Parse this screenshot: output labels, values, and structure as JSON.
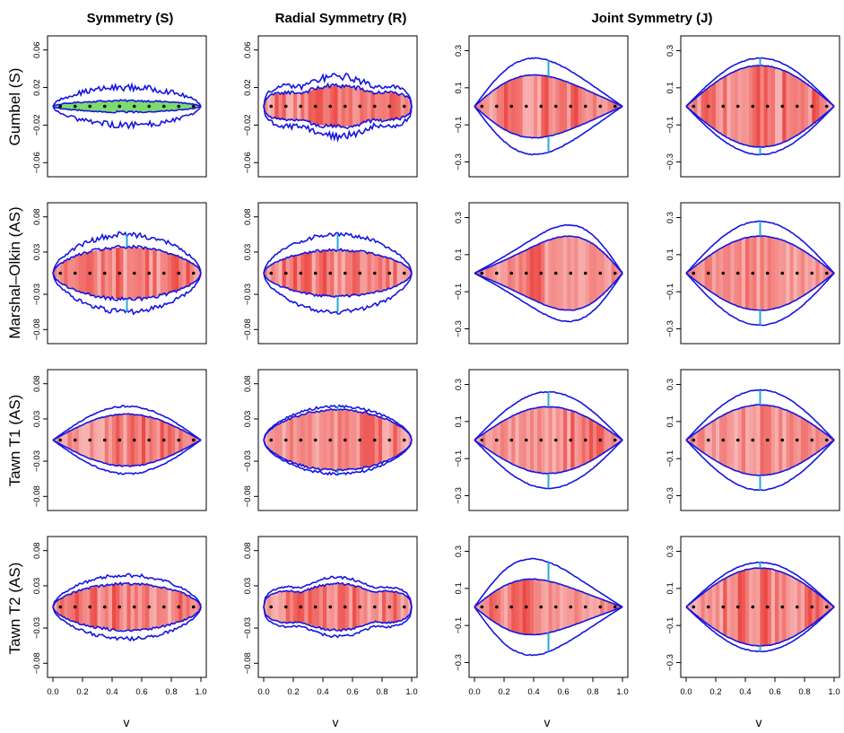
{
  "figure": {
    "column_titles": [
      "Symmetry (S)",
      "Radial Symmetry (R)",
      "Joint Symmetry (J)"
    ],
    "row_labels": [
      "Gumbel (S)",
      "Marshal–Olkin (AS)",
      "Tawn T1 (AS)",
      "Tawn T2 (AS)"
    ]
  },
  "chart_data": {
    "type": "area",
    "description_free": true,
    "xlabel": "v",
    "xlim": [
      0,
      1
    ],
    "x_ticks": [
      "0.0",
      "0.2",
      "0.4",
      "0.6",
      "0.8",
      "1.0"
    ],
    "y_tick_sets": {
      "small": [
        "−0.06",
        "−0.02",
        "0.02",
        "0.06"
      ],
      "medium": [
        "−0.08",
        "−0.03",
        "0.03",
        "0.08"
      ],
      "large": [
        "−0.3",
        "−0.1",
        "0.1",
        "0.3"
      ]
    },
    "ylims": {
      "small": [
        -0.075,
        0.075
      ],
      "medium": [
        -0.1,
        0.1
      ],
      "large": [
        -0.38,
        0.38
      ]
    },
    "dot_x": [
      0.05,
      0.15,
      0.25,
      0.35,
      0.45,
      0.55,
      0.65,
      0.75,
      0.85,
      0.95
    ],
    "colors": {
      "band": "#1515e0",
      "marker": "#2aa7e0",
      "fill_light": "#fde8e8",
      "fill_dark": "#e8201a",
      "green": "#7ddb6e",
      "dot": "#000000"
    },
    "panels": [
      {
        "row": 0,
        "col": 0,
        "ylim": "small",
        "shape": "sym",
        "inner": 0.006,
        "outer": 0.02,
        "wiggle": 0.35,
        "green": true,
        "marker": false,
        "dark": [
          0.3,
          0.55
        ]
      },
      {
        "row": 0,
        "col": 1,
        "ylim": "small",
        "shape": "twin",
        "inner": 0.022,
        "outer": 0.032,
        "wiggle": 0.25,
        "green": false,
        "marker": false,
        "dark": [
          0.05,
          0.95
        ]
      },
      {
        "row": 0,
        "col": 2,
        "ylim": "large",
        "shape": "lens",
        "inner": 0.17,
        "outer": 0.26,
        "wiggle": 0.05,
        "green": false,
        "marker": true,
        "skew": 0.1,
        "dark": [
          0.2,
          0.7
        ]
      },
      {
        "row": 0,
        "col": 3,
        "ylim": "large",
        "shape": "lens",
        "inner": 0.22,
        "outer": 0.26,
        "wiggle": 0.04,
        "green": false,
        "marker": true,
        "skew": 0,
        "dark": [
          0.1,
          0.9
        ]
      },
      {
        "row": 1,
        "col": 0,
        "ylim": "medium",
        "shape": "sym",
        "inner": 0.037,
        "outer": 0.055,
        "wiggle": 0.15,
        "green": false,
        "marker": true,
        "dark": [
          0.05,
          0.95
        ]
      },
      {
        "row": 1,
        "col": 1,
        "ylim": "medium",
        "shape": "sym",
        "inner": 0.033,
        "outer": 0.055,
        "wiggle": 0.12,
        "green": false,
        "marker": true,
        "dark": [
          0.08,
          0.92
        ]
      },
      {
        "row": 1,
        "col": 2,
        "ylim": "large",
        "shape": "lens",
        "inner": 0.2,
        "outer": 0.26,
        "wiggle": 0.05,
        "green": false,
        "marker": false,
        "skew": -0.15,
        "dark": [
          0.3,
          0.5
        ]
      },
      {
        "row": 1,
        "col": 3,
        "ylim": "large",
        "shape": "lens",
        "inner": 0.2,
        "outer": 0.28,
        "wiggle": 0.04,
        "green": false,
        "marker": true,
        "skew": 0,
        "dark": [
          0.4,
          0.6
        ]
      },
      {
        "row": 2,
        "col": 0,
        "ylim": "medium",
        "shape": "lens",
        "inner": 0.037,
        "outer": 0.048,
        "wiggle": 0.12,
        "green": false,
        "marker": false,
        "skew": 0,
        "dark": [
          0.4,
          0.95
        ]
      },
      {
        "row": 2,
        "col": 1,
        "ylim": "medium",
        "shape": "sym",
        "inner": 0.043,
        "outer": 0.048,
        "wiggle": 0.08,
        "green": false,
        "marker": true,
        "dark": [
          0.4,
          0.95
        ]
      },
      {
        "row": 2,
        "col": 2,
        "ylim": "large",
        "shape": "lens",
        "inner": 0.18,
        "outer": 0.26,
        "wiggle": 0.05,
        "green": false,
        "marker": true,
        "skew": 0,
        "dark": [
          0.6,
          0.9
        ]
      },
      {
        "row": 2,
        "col": 3,
        "ylim": "large",
        "shape": "lens",
        "inner": 0.19,
        "outer": 0.27,
        "wiggle": 0.04,
        "green": false,
        "marker": true,
        "skew": 0,
        "dark": [
          0.5,
          0.6
        ]
      },
      {
        "row": 3,
        "col": 0,
        "ylim": "medium",
        "shape": "sym",
        "inner": 0.033,
        "outer": 0.045,
        "wiggle": 0.12,
        "green": false,
        "marker": false,
        "dark": [
          0.05,
          0.95
        ]
      },
      {
        "row": 3,
        "col": 1,
        "ylim": "medium",
        "shape": "twin",
        "inner": 0.033,
        "outer": 0.042,
        "wiggle": 0.1,
        "green": false,
        "marker": false,
        "dark": [
          0.1,
          0.9
        ]
      },
      {
        "row": 3,
        "col": 2,
        "ylim": "large",
        "shape": "lens",
        "inner": 0.15,
        "outer": 0.26,
        "wiggle": 0.05,
        "green": false,
        "marker": true,
        "skew": 0.12,
        "dark": [
          0.1,
          0.4
        ]
      },
      {
        "row": 3,
        "col": 3,
        "ylim": "large",
        "shape": "lens",
        "inner": 0.21,
        "outer": 0.24,
        "wiggle": 0.04,
        "green": false,
        "marker": true,
        "skew": 0,
        "dark": [
          0.1,
          0.9
        ]
      }
    ]
  }
}
